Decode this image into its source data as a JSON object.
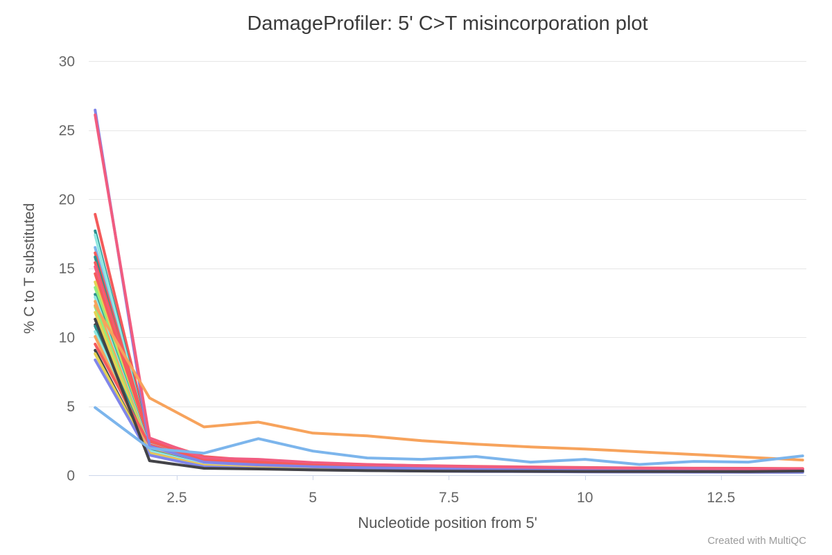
{
  "watermark": "Created with MultiQC",
  "chart_data": {
    "type": "line",
    "title": "DamageProfiler: 5' C>T misincorporation plot",
    "xlabel": "Nucleotide position from 5'",
    "ylabel": "% C to T substituted",
    "xlim": [
      0.88,
      14.06
    ],
    "ylim": [
      0,
      30
    ],
    "xticks": [
      2.5,
      5,
      7.5,
      10,
      12.5
    ],
    "yticks": [
      0,
      5,
      10,
      15,
      20,
      25,
      30
    ],
    "grid": "horizontal",
    "legend": "none",
    "x": [
      1,
      2,
      3,
      4,
      5,
      6,
      7,
      8,
      9,
      10,
      11,
      12,
      13,
      14
    ],
    "axis_line_color": "#ccd6eb",
    "grid_color": "#e6e6e6",
    "series": [
      {
        "color": "#f45b5b",
        "values": [
          18.9,
          2.6,
          1.35,
          1.05,
          0.88,
          0.77,
          0.7,
          0.64,
          0.6,
          0.56,
          0.53,
          0.51,
          0.5,
          0.48
        ]
      },
      {
        "color": "#2b908f",
        "values": [
          17.7,
          2.35,
          1.1,
          0.85,
          0.7,
          0.6,
          0.54,
          0.49,
          0.46,
          0.43,
          0.41,
          0.39,
          0.38,
          0.37
        ]
      },
      {
        "color": "#91e8e1",
        "values": [
          17.4,
          2.25,
          1.05,
          0.8,
          0.66,
          0.57,
          0.51,
          0.46,
          0.43,
          0.4,
          0.38,
          0.36,
          0.35,
          0.34
        ]
      },
      {
        "color": "#7cb5ec",
        "values": [
          16.5,
          2.15,
          1.0,
          0.76,
          0.62,
          0.54,
          0.48,
          0.44,
          0.41,
          0.38,
          0.36,
          0.35,
          0.34,
          0.33
        ]
      },
      {
        "color": "#f45b5b",
        "values": [
          16.1,
          2.5,
          1.25,
          0.98,
          0.82,
          0.72,
          0.65,
          0.6,
          0.56,
          0.52,
          0.5,
          0.48,
          0.46,
          0.45
        ]
      },
      {
        "color": "#2b908f",
        "values": [
          15.8,
          2.05,
          0.95,
          0.73,
          0.6,
          0.52,
          0.46,
          0.42,
          0.39,
          0.37,
          0.35,
          0.34,
          0.33,
          0.32
        ]
      },
      {
        "color": "#f45b5b",
        "values": [
          15.4,
          2.55,
          1.3,
          1.0,
          0.84,
          0.73,
          0.66,
          0.6,
          0.56,
          0.53,
          0.5,
          0.48,
          0.47,
          0.46
        ]
      },
      {
        "color": "#f15c80",
        "values": [
          15.1,
          2.0,
          1.1,
          0.88,
          0.74,
          0.64,
          0.57,
          0.52,
          0.49,
          0.46,
          0.44,
          0.42,
          0.41,
          0.4
        ]
      },
      {
        "color": "#f45b5b",
        "values": [
          14.6,
          2.45,
          1.2,
          0.94,
          0.78,
          0.69,
          0.62,
          0.57,
          0.53,
          0.5,
          0.48,
          0.46,
          0.44,
          0.43
        ]
      },
      {
        "color": "#e4d354",
        "values": [
          14.0,
          1.85,
          0.83,
          0.63,
          0.51,
          0.44,
          0.39,
          0.35,
          0.33,
          0.31,
          0.29,
          0.28,
          0.27,
          0.26
        ]
      },
      {
        "color": "#90ed7d",
        "values": [
          13.6,
          1.9,
          0.85,
          0.64,
          0.52,
          0.44,
          0.39,
          0.35,
          0.33,
          0.31,
          0.29,
          0.28,
          0.27,
          0.26
        ]
      },
      {
        "color": "#2b908f",
        "values": [
          13.1,
          2.0,
          0.9,
          0.7,
          0.57,
          0.49,
          0.44,
          0.4,
          0.37,
          0.35,
          0.33,
          0.32,
          0.31,
          0.3
        ]
      },
      {
        "color": "#91e8e1",
        "values": [
          12.9,
          1.95,
          0.88,
          0.67,
          0.55,
          0.47,
          0.42,
          0.38,
          0.35,
          0.33,
          0.31,
          0.3,
          0.29,
          0.28
        ]
      },
      {
        "color": "#f7a35c",
        "values": [
          12.6,
          1.85,
          0.82,
          0.62,
          0.5,
          0.43,
          0.38,
          0.35,
          0.32,
          0.3,
          0.29,
          0.27,
          0.26,
          0.26
        ]
      },
      {
        "color": "#90ed7d",
        "values": [
          12.2,
          1.75,
          0.78,
          0.59,
          0.48,
          0.41,
          0.36,
          0.33,
          0.3,
          0.29,
          0.27,
          0.26,
          0.25,
          0.25
        ]
      },
      {
        "color": "#e4d354",
        "values": [
          11.8,
          1.7,
          0.75,
          0.57,
          0.46,
          0.4,
          0.35,
          0.32,
          0.29,
          0.28,
          0.26,
          0.25,
          0.24,
          0.24
        ]
      },
      {
        "color": "#434348",
        "values": [
          10.9,
          1.6,
          0.7,
          0.53,
          0.43,
          0.37,
          0.33,
          0.3,
          0.28,
          0.26,
          0.25,
          0.24,
          0.23,
          0.22
        ]
      },
      {
        "color": "#2b908f",
        "values": [
          10.8,
          1.8,
          0.8,
          0.61,
          0.5,
          0.43,
          0.38,
          0.35,
          0.32,
          0.3,
          0.29,
          0.28,
          0.27,
          0.26
        ]
      },
      {
        "color": "#91e8e1",
        "values": [
          10.4,
          1.75,
          0.78,
          0.6,
          0.49,
          0.42,
          0.37,
          0.34,
          0.31,
          0.29,
          0.28,
          0.27,
          0.26,
          0.25
        ]
      },
      {
        "color": "#f7a35c",
        "values": [
          10.05,
          1.6,
          0.72,
          0.55,
          0.45,
          0.38,
          0.34,
          0.31,
          0.29,
          0.27,
          0.26,
          0.25,
          0.24,
          0.23
        ]
      },
      {
        "color": "#f45b5b",
        "values": [
          9.5,
          2.2,
          1.05,
          0.82,
          0.68,
          0.6,
          0.54,
          0.49,
          0.46,
          0.43,
          0.41,
          0.4,
          0.38,
          0.37
        ]
      },
      {
        "color": "#434348",
        "values": [
          9.05,
          1.5,
          0.65,
          0.5,
          0.41,
          0.35,
          0.31,
          0.29,
          0.27,
          0.25,
          0.24,
          0.23,
          0.22,
          0.22
        ]
      },
      {
        "color": "#e4d354",
        "values": [
          8.8,
          1.55,
          0.68,
          0.52,
          0.42,
          0.36,
          0.32,
          0.29,
          0.27,
          0.26,
          0.25,
          0.24,
          0.23,
          0.22
        ]
      },
      {
        "color": "#8085e9",
        "values": [
          8.35,
          1.45,
          0.62,
          0.47,
          0.39,
          0.34,
          0.3,
          0.27,
          0.26,
          0.24,
          0.23,
          0.22,
          0.22,
          0.21
        ]
      },
      {
        "color": "#8085e9",
        "values": [
          26.45,
          2.1,
          0.95,
          0.75,
          0.62,
          0.54,
          0.48,
          0.45,
          0.42,
          0.4,
          0.38,
          0.37,
          0.36,
          0.35
        ]
      },
      {
        "color": "#f15c80",
        "values": [
          26.1,
          2.7,
          1.25,
          1.15,
          0.92,
          0.78,
          0.68,
          0.62,
          0.57,
          0.53,
          0.5,
          0.48,
          0.46,
          0.45
        ]
      },
      {
        "color": "#434348",
        "values": [
          11.3,
          1.05,
          0.5,
          0.45,
          0.38,
          0.33,
          0.3,
          0.29,
          0.28,
          0.27,
          0.27,
          0.26,
          0.26,
          0.3
        ]
      },
      {
        "color": "#f7a35c",
        "values": [
          12.3,
          5.6,
          3.5,
          3.85,
          3.05,
          2.85,
          2.5,
          2.25,
          2.05,
          1.9,
          1.7,
          1.5,
          1.3,
          1.1
        ]
      },
      {
        "color": "#7cb5ec",
        "values": [
          4.9,
          1.95,
          1.6,
          2.65,
          1.75,
          1.25,
          1.15,
          1.35,
          0.95,
          1.15,
          0.78,
          1.0,
          0.95,
          1.4
        ]
      }
    ]
  }
}
